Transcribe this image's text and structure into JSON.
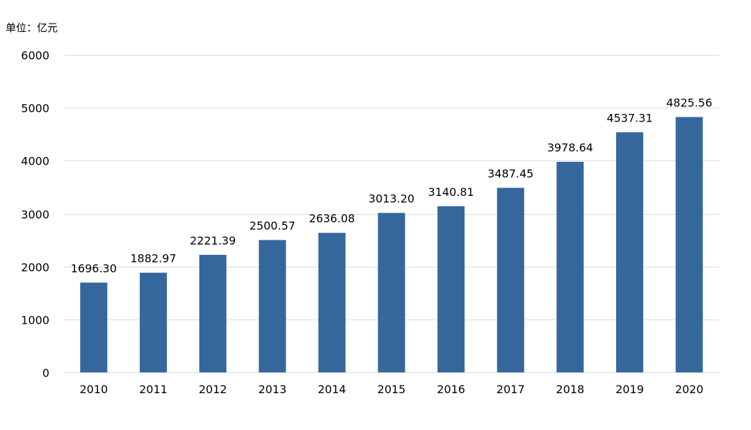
{
  "chart_data": {
    "type": "bar",
    "unit_label": "单位：亿元",
    "categories": [
      "2010",
      "2011",
      "2012",
      "2013",
      "2014",
      "2015",
      "2016",
      "2017",
      "2018",
      "2019",
      "2020"
    ],
    "values": [
      1696.3,
      1882.97,
      2221.39,
      2500.57,
      2636.08,
      3013.2,
      3140.81,
      3487.45,
      3978.64,
      4537.31,
      4825.56
    ],
    "data_labels": [
      "1696.30",
      "1882.97",
      "2221.39",
      "2500.57",
      "2636.08",
      "3013.20",
      "3140.81",
      "3487.45",
      "3978.64",
      "4537.31",
      "4825.56"
    ],
    "yticks": [
      0,
      1000,
      2000,
      3000,
      4000,
      5000,
      6000
    ],
    "ylim": [
      0,
      6000
    ],
    "title": "",
    "xlabel": "",
    "ylabel": "",
    "grid": true,
    "legend": "none",
    "bar_color": "#35679c"
  }
}
